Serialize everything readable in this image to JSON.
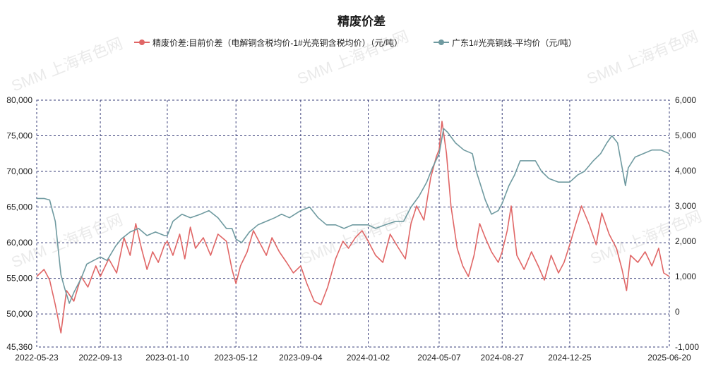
{
  "chart_data": {
    "type": "line",
    "title": "精废价差",
    "legend_position": "top-center",
    "grid": true,
    "watermark": "SMM 上海有色网",
    "x_ticks": [
      "2022-05-23",
      "2022-09-13",
      "2023-01-10",
      "2023-05-12",
      "2023-09-04",
      "2024-01-02",
      "2024-05-07",
      "2024-08-27",
      "2024-12-25",
      "2025-06-20"
    ],
    "y_left": {
      "min": 45360,
      "max": 80000,
      "ticks": [
        "45,360",
        "50,000",
        "55,000",
        "60,000",
        "65,000",
        "70,000",
        "75,000",
        "80,000"
      ]
    },
    "y_right": {
      "min": -1000,
      "max": 6000,
      "ticks": [
        "-1,000",
        "0",
        "1,000",
        "2,000",
        "3,000",
        "4,000",
        "5,000",
        "6,000"
      ]
    },
    "series": [
      {
        "name": "精废价差:目前价差（电解铜含税均价-1#光亮铜含税均价）（元/吨）",
        "axis": "right",
        "color": "#e06666",
        "points": [
          [
            "2022-05-23",
            1000
          ],
          [
            "2022-06-05",
            1200
          ],
          [
            "2022-06-15",
            900
          ],
          [
            "2022-06-25",
            200
          ],
          [
            "2022-07-05",
            -600
          ],
          [
            "2022-07-15",
            600
          ],
          [
            "2022-07-28",
            300
          ],
          [
            "2022-08-10",
            1000
          ],
          [
            "2022-08-22",
            700
          ],
          [
            "2022-09-05",
            1300
          ],
          [
            "2022-09-13",
            1000
          ],
          [
            "2022-09-28",
            1500
          ],
          [
            "2022-10-12",
            1100
          ],
          [
            "2022-10-25",
            2100
          ],
          [
            "2022-11-05",
            1600
          ],
          [
            "2022-11-15",
            2500
          ],
          [
            "2022-11-25",
            1800
          ],
          [
            "2022-12-05",
            1200
          ],
          [
            "2022-12-15",
            1700
          ],
          [
            "2022-12-25",
            1400
          ],
          [
            "2023-01-05",
            1900
          ],
          [
            "2023-01-10",
            2000
          ],
          [
            "2023-01-20",
            1600
          ],
          [
            "2023-02-01",
            2200
          ],
          [
            "2023-02-10",
            1500
          ],
          [
            "2023-02-20",
            2400
          ],
          [
            "2023-03-01",
            1800
          ],
          [
            "2023-03-15",
            2100
          ],
          [
            "2023-03-28",
            1600
          ],
          [
            "2023-04-10",
            2200
          ],
          [
            "2023-04-25",
            2000
          ],
          [
            "2023-05-05",
            1200
          ],
          [
            "2023-05-12",
            800
          ],
          [
            "2023-05-20",
            1300
          ],
          [
            "2023-06-01",
            1700
          ],
          [
            "2023-06-12",
            2300
          ],
          [
            "2023-06-25",
            1900
          ],
          [
            "2023-07-05",
            1600
          ],
          [
            "2023-07-15",
            2100
          ],
          [
            "2023-07-28",
            1700
          ],
          [
            "2023-08-10",
            1400
          ],
          [
            "2023-08-22",
            1100
          ],
          [
            "2023-09-04",
            1300
          ],
          [
            "2023-09-15",
            800
          ],
          [
            "2023-09-28",
            300
          ],
          [
            "2023-10-10",
            200
          ],
          [
            "2023-10-22",
            700
          ],
          [
            "2023-11-05",
            1500
          ],
          [
            "2023-11-18",
            2000
          ],
          [
            "2023-11-28",
            1800
          ],
          [
            "2023-12-10",
            2100
          ],
          [
            "2023-12-22",
            2300
          ],
          [
            "2024-01-02",
            2000
          ],
          [
            "2024-01-15",
            1600
          ],
          [
            "2024-01-28",
            1400
          ],
          [
            "2024-02-10",
            2200
          ],
          [
            "2024-02-25",
            1800
          ],
          [
            "2024-03-08",
            1500
          ],
          [
            "2024-03-18",
            2500
          ],
          [
            "2024-03-28",
            3000
          ],
          [
            "2024-04-10",
            2600
          ],
          [
            "2024-04-22",
            3800
          ],
          [
            "2024-05-02",
            4400
          ],
          [
            "2024-05-07",
            4600
          ],
          [
            "2024-05-12",
            5400
          ],
          [
            "2024-05-20",
            4500
          ],
          [
            "2024-05-28",
            3000
          ],
          [
            "2024-06-08",
            1800
          ],
          [
            "2024-06-18",
            1300
          ],
          [
            "2024-06-28",
            1000
          ],
          [
            "2024-07-08",
            1600
          ],
          [
            "2024-07-18",
            2500
          ],
          [
            "2024-07-28",
            2100
          ],
          [
            "2024-08-08",
            1700
          ],
          [
            "2024-08-20",
            1400
          ],
          [
            "2024-08-27",
            1700
          ],
          [
            "2024-09-05",
            2300
          ],
          [
            "2024-09-12",
            3000
          ],
          [
            "2024-09-22",
            1600
          ],
          [
            "2024-10-05",
            1200
          ],
          [
            "2024-10-18",
            1700
          ],
          [
            "2024-10-30",
            1300
          ],
          [
            "2024-11-10",
            900
          ],
          [
            "2024-11-22",
            1600
          ],
          [
            "2024-12-05",
            1100
          ],
          [
            "2024-12-15",
            1400
          ],
          [
            "2024-12-25",
            1900
          ],
          [
            "2025-01-05",
            2500
          ],
          [
            "2025-01-15",
            3000
          ],
          [
            "2025-01-28",
            2500
          ],
          [
            "2025-02-10",
            1900
          ],
          [
            "2025-02-20",
            2800
          ],
          [
            "2025-03-05",
            2200
          ],
          [
            "2025-03-18",
            1800
          ],
          [
            "2025-03-28",
            1200
          ],
          [
            "2025-04-05",
            600
          ],
          [
            "2025-04-12",
            1600
          ],
          [
            "2025-04-25",
            1400
          ],
          [
            "2025-05-08",
            1700
          ],
          [
            "2025-05-20",
            1300
          ],
          [
            "2025-06-01",
            1800
          ],
          [
            "2025-06-10",
            1100
          ],
          [
            "2025-06-20",
            1000
          ]
        ]
      },
      {
        "name": "广东1#光亮铜线-平均价（元/吨）",
        "axis": "left",
        "color": "#6f9aa0",
        "points": [
          [
            "2022-05-23",
            66200
          ],
          [
            "2022-06-05",
            66200
          ],
          [
            "2022-06-15",
            66000
          ],
          [
            "2022-06-25",
            63000
          ],
          [
            "2022-07-05",
            55500
          ],
          [
            "2022-07-12",
            53500
          ],
          [
            "2022-07-20",
            51500
          ],
          [
            "2022-07-28",
            53000
          ],
          [
            "2022-08-10",
            55000
          ],
          [
            "2022-08-20",
            57000
          ],
          [
            "2022-09-01",
            57500
          ],
          [
            "2022-09-13",
            58000
          ],
          [
            "2022-09-25",
            57500
          ],
          [
            "2022-10-10",
            59500
          ],
          [
            "2022-10-20",
            60500
          ],
          [
            "2022-11-05",
            61500
          ],
          [
            "2022-11-20",
            62000
          ],
          [
            "2022-12-05",
            61000
          ],
          [
            "2022-12-20",
            61500
          ],
          [
            "2023-01-05",
            61000
          ],
          [
            "2023-01-10",
            61000
          ],
          [
            "2023-01-20",
            63000
          ],
          [
            "2023-02-05",
            64000
          ],
          [
            "2023-02-20",
            63500
          ],
          [
            "2023-03-10",
            64000
          ],
          [
            "2023-03-25",
            64500
          ],
          [
            "2023-04-10",
            63500
          ],
          [
            "2023-04-25",
            62000
          ],
          [
            "2023-05-05",
            62000
          ],
          [
            "2023-05-12",
            60500
          ],
          [
            "2023-05-22",
            60000
          ],
          [
            "2023-06-05",
            61500
          ],
          [
            "2023-06-20",
            62500
          ],
          [
            "2023-07-05",
            63000
          ],
          [
            "2023-07-20",
            63500
          ],
          [
            "2023-08-01",
            64000
          ],
          [
            "2023-08-15",
            63500
          ],
          [
            "2023-09-04",
            64500
          ],
          [
            "2023-09-20",
            65000
          ],
          [
            "2023-10-05",
            63500
          ],
          [
            "2023-10-20",
            62500
          ],
          [
            "2023-11-05",
            62500
          ],
          [
            "2023-11-20",
            62000
          ],
          [
            "2023-12-05",
            62500
          ],
          [
            "2023-12-20",
            62500
          ],
          [
            "2024-01-02",
            62500
          ],
          [
            "2024-01-15",
            62000
          ],
          [
            "2024-02-01",
            62500
          ],
          [
            "2024-02-20",
            63000
          ],
          [
            "2024-03-05",
            63000
          ],
          [
            "2024-03-18",
            65000
          ],
          [
            "2024-04-01",
            66500
          ],
          [
            "2024-04-15",
            68500
          ],
          [
            "2024-04-25",
            70500
          ],
          [
            "2024-05-07",
            72500
          ],
          [
            "2024-05-15",
            76000
          ],
          [
            "2024-05-22",
            75500
          ],
          [
            "2024-06-05",
            74000
          ],
          [
            "2024-06-20",
            73000
          ],
          [
            "2024-07-05",
            72500
          ],
          [
            "2024-07-12",
            70000
          ],
          [
            "2024-07-20",
            68000
          ],
          [
            "2024-07-28",
            66000
          ],
          [
            "2024-08-08",
            64000
          ],
          [
            "2024-08-20",
            64500
          ],
          [
            "2024-08-27",
            65500
          ],
          [
            "2024-09-08",
            68000
          ],
          [
            "2024-09-18",
            69500
          ],
          [
            "2024-09-28",
            71500
          ],
          [
            "2024-10-10",
            71500
          ],
          [
            "2024-10-25",
            71500
          ],
          [
            "2024-11-05",
            70000
          ],
          [
            "2024-11-18",
            69000
          ],
          [
            "2024-12-05",
            68500
          ],
          [
            "2024-12-25",
            68500
          ],
          [
            "2025-01-08",
            69500
          ],
          [
            "2025-01-20",
            70000
          ],
          [
            "2025-02-05",
            71500
          ],
          [
            "2025-02-18",
            72500
          ],
          [
            "2025-03-01",
            74000
          ],
          [
            "2025-03-10",
            75000
          ],
          [
            "2025-03-20",
            74000
          ],
          [
            "2025-04-03",
            68000
          ],
          [
            "2025-04-08",
            70500
          ],
          [
            "2025-04-20",
            72000
          ],
          [
            "2025-05-05",
            72500
          ],
          [
            "2025-05-20",
            73000
          ],
          [
            "2025-06-05",
            73000
          ],
          [
            "2025-06-20",
            72500
          ]
        ]
      }
    ]
  }
}
